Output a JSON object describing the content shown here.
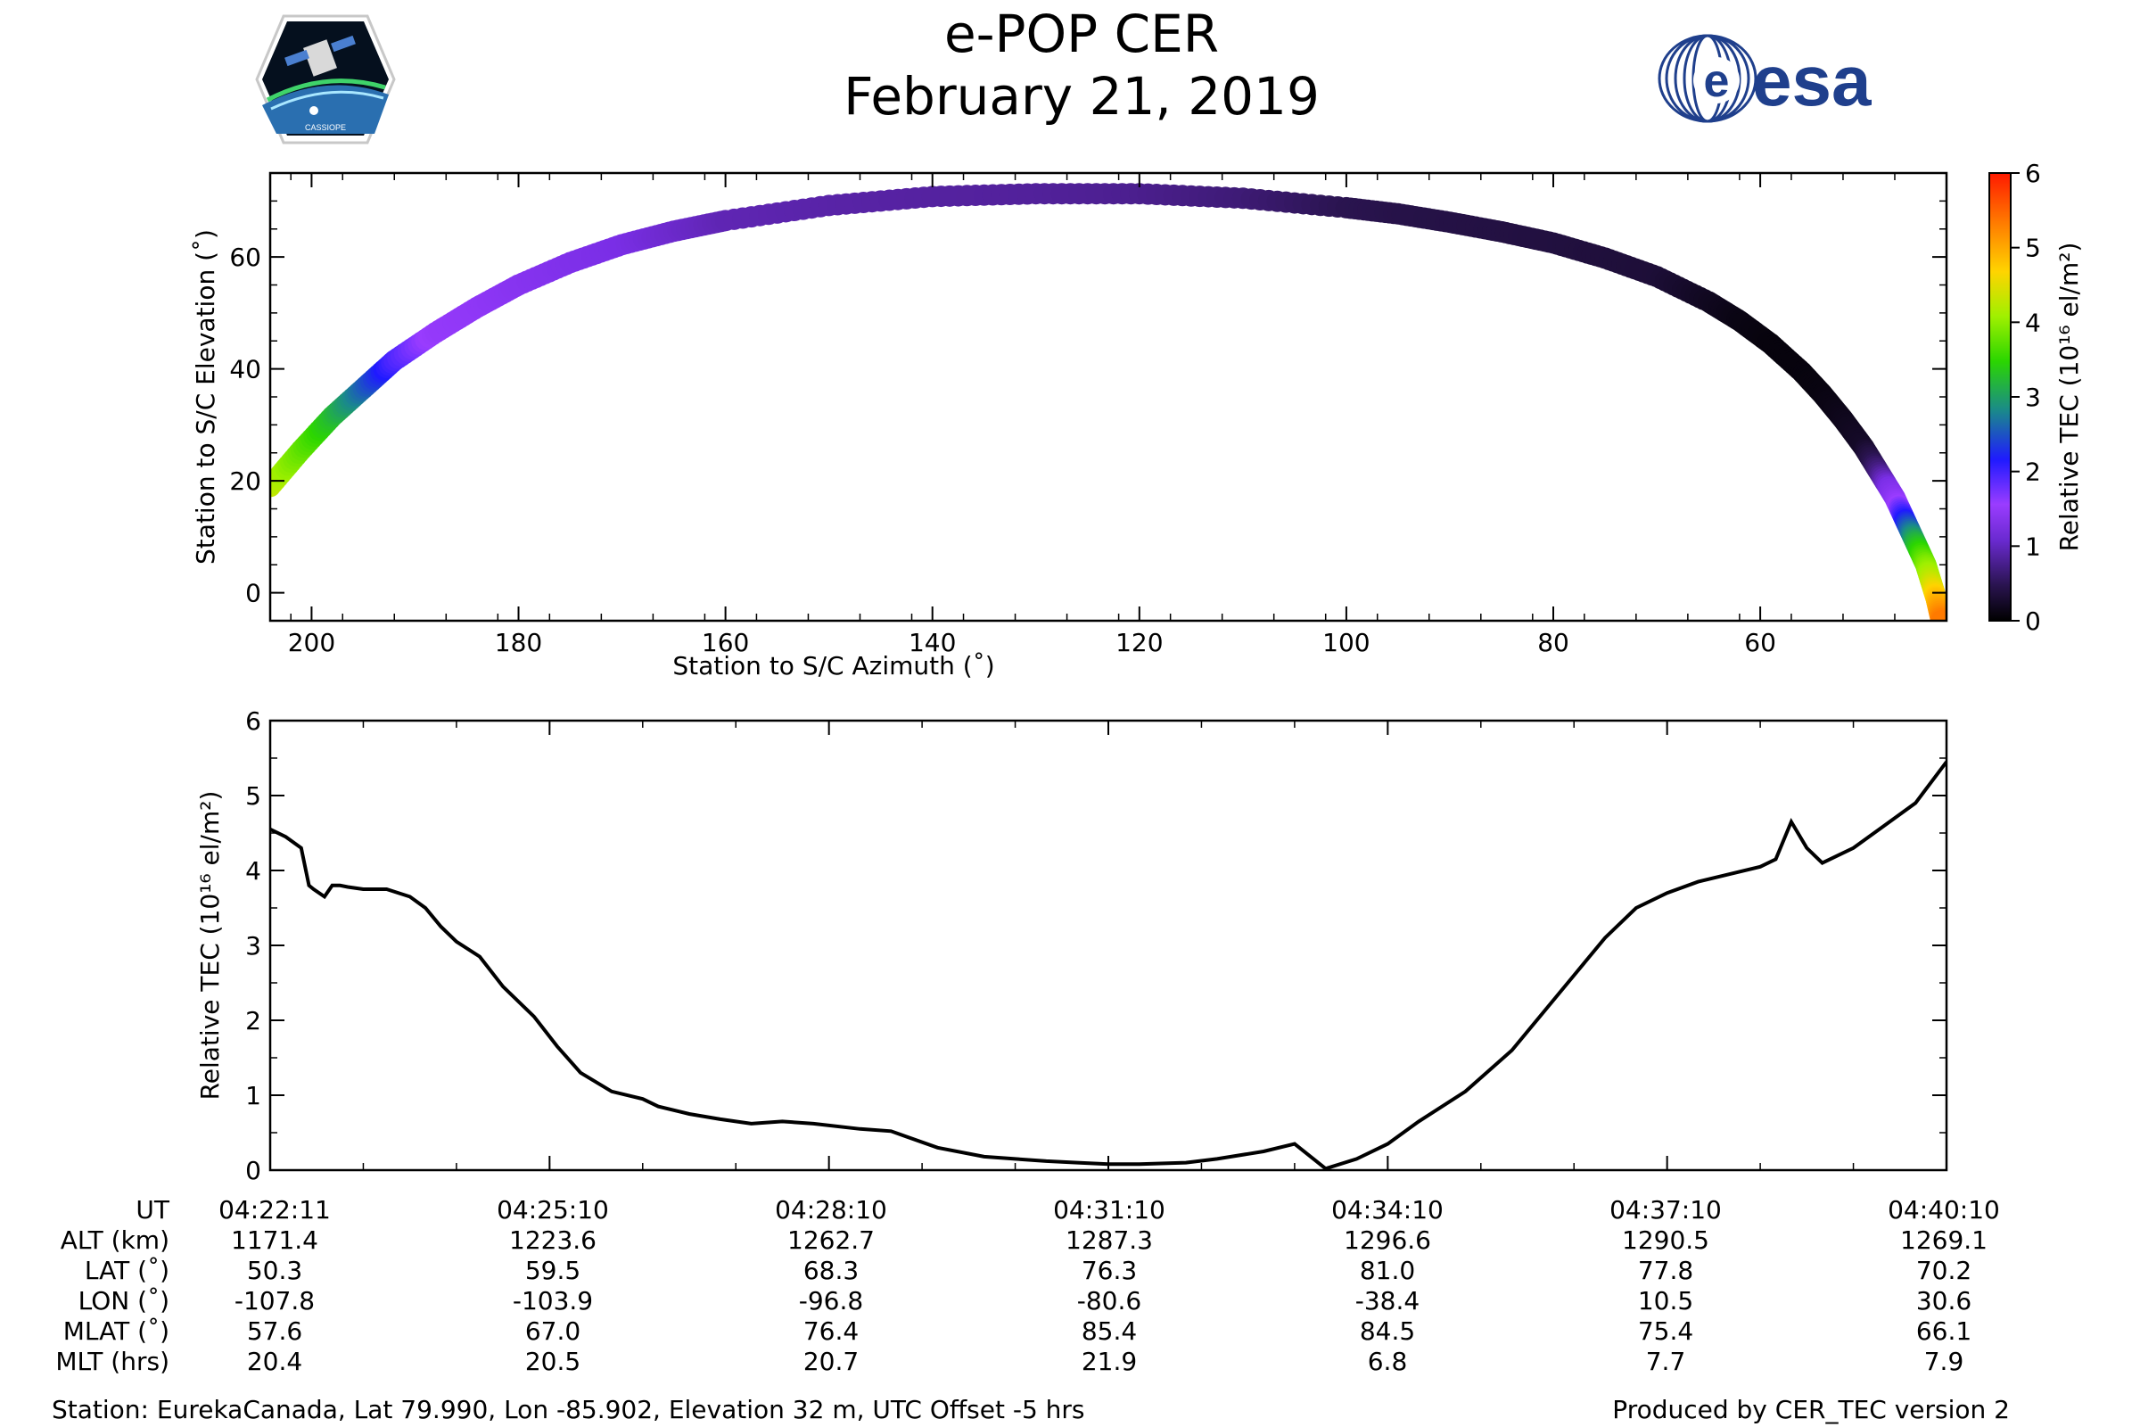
{
  "header": {
    "title": "e-POP CER",
    "subtitle": "February 21, 2019",
    "esa_logo_text": "esa",
    "cassiope_logo_text": "CASSIOPE"
  },
  "colors": {
    "curve": "#000000",
    "colormap": [
      "#000000",
      "#2a1450",
      "#7a2ee6",
      "#9a3cff",
      "#1f1aff",
      "#1a8a8a",
      "#2bd600",
      "#a0f000",
      "#ffd400",
      "#ff7a00",
      "#ff1a00"
    ],
    "esa_blue": "#1f3f8c"
  },
  "chart_data": [
    {
      "type": "scatter",
      "name": "sky-track",
      "xlabel": "Station to S/C Azimuth (˚)",
      "ylabel": "Station to S/C Elevation (˚)",
      "xlim": [
        204,
        42
      ],
      "ylim": [
        -5,
        75
      ],
      "xticks": [
        200,
        180,
        160,
        140,
        120,
        100,
        80,
        60
      ],
      "yticks": [
        0,
        20,
        40,
        60
      ],
      "colorbar": {
        "label": "Relative TEC (10¹⁶ el/m²)",
        "min": 0,
        "max": 6,
        "ticks": [
          0,
          1,
          2,
          3,
          4,
          5,
          6
        ]
      },
      "x": [
        204,
        201,
        198,
        195,
        192,
        188,
        184,
        180,
        175,
        170,
        165,
        160,
        150,
        140,
        130,
        120,
        110,
        100,
        95,
        90,
        85,
        80,
        75,
        70,
        65,
        62,
        59,
        56,
        54,
        52,
        50,
        48.5,
        47,
        46,
        45,
        44,
        43.5,
        43,
        42.5
      ],
      "y": [
        19,
        25.5,
        31.5,
        36.5,
        41.5,
        46.5,
        51,
        55,
        59,
        62.2,
        64.6,
        66.5,
        69.2,
        70.8,
        71.3,
        71.3,
        70.5,
        68.8,
        67.7,
        66.2,
        64.5,
        62.5,
        59.8,
        56.5,
        52,
        48.6,
        44.5,
        39.5,
        35.5,
        31,
        26,
        21.5,
        17,
        13,
        9,
        5,
        2,
        -1,
        -5
      ],
      "tec": [
        4.4,
        3.9,
        3.4,
        2.8,
        2.2,
        1.7,
        1.6,
        1.45,
        1.3,
        1.2,
        1.1,
        1.0,
        0.95,
        0.92,
        0.9,
        0.85,
        0.75,
        0.6,
        0.55,
        0.52,
        0.5,
        0.48,
        0.45,
        0.42,
        0.25,
        0.15,
        0.1,
        0.1,
        0.12,
        0.2,
        0.3,
        0.8,
        1.5,
        2.4,
        3.3,
        4.0,
        4.4,
        4.9,
        5.4
      ]
    },
    {
      "type": "line",
      "name": "tec-time-series",
      "xlabel": "UT",
      "ylabel": "Relative TEC (10¹⁶ el/m²)",
      "xlim": [
        0,
        1080
      ],
      "ylim": [
        0,
        6
      ],
      "yticks": [
        0,
        1,
        2,
        3,
        4,
        5,
        6
      ],
      "x": [
        0,
        10,
        20,
        25,
        28,
        35,
        40,
        45,
        50,
        60,
        75,
        90,
        100,
        110,
        120,
        135,
        150,
        170,
        185,
        200,
        220,
        240,
        250,
        270,
        290,
        310,
        330,
        350,
        380,
        400,
        430,
        460,
        480,
        500,
        520,
        540,
        560,
        590,
        610,
        640,
        660,
        680,
        700,
        720,
        740,
        770,
        800,
        820,
        840,
        860,
        880,
        900,
        920,
        940,
        960,
        970,
        980,
        990,
        1000,
        1010,
        1020,
        1040,
        1060,
        1080
      ],
      "y": [
        4.55,
        4.45,
        4.3,
        3.8,
        3.75,
        3.65,
        3.8,
        3.8,
        3.78,
        3.75,
        3.75,
        3.65,
        3.5,
        3.25,
        3.05,
        2.85,
        2.45,
        2.05,
        1.65,
        1.3,
        1.05,
        0.95,
        0.85,
        0.75,
        0.68,
        0.62,
        0.65,
        0.62,
        0.55,
        0.52,
        0.3,
        0.18,
        0.15,
        0.12,
        0.1,
        0.08,
        0.08,
        0.1,
        0.15,
        0.25,
        0.35,
        0.02,
        0.15,
        0.35,
        0.65,
        1.05,
        1.6,
        2.1,
        2.6,
        3.1,
        3.5,
        3.7,
        3.85,
        3.95,
        4.05,
        4.15,
        4.65,
        4.3,
        4.1,
        4.2,
        4.3,
        4.6,
        4.9,
        5.45
      ],
      "xticks": [
        0,
        180,
        360,
        540,
        720,
        900,
        1080
      ]
    }
  ],
  "ephemeris": {
    "row_labels": [
      "UT",
      "ALT (km)",
      "LAT (˚)",
      "LON (˚)",
      "MLAT (˚)",
      "MLT (hrs)"
    ],
    "columns": [
      [
        "04:22:11",
        "1171.4",
        "50.3",
        "-107.8",
        "57.6",
        "20.4"
      ],
      [
        "04:25:10",
        "1223.6",
        "59.5",
        "-103.9",
        "67.0",
        "20.5"
      ],
      [
        "04:28:10",
        "1262.7",
        "68.3",
        "-96.8",
        "76.4",
        "20.7"
      ],
      [
        "04:31:10",
        "1287.3",
        "76.3",
        "-80.6",
        "85.4",
        "21.9"
      ],
      [
        "04:34:10",
        "1296.6",
        "81.0",
        "-38.4",
        "84.5",
        "6.8"
      ],
      [
        "04:37:10",
        "1290.5",
        "77.8",
        "10.5",
        "75.4",
        "7.7"
      ],
      [
        "04:40:10",
        "1269.1",
        "70.2",
        "30.6",
        "66.1",
        "7.9"
      ]
    ]
  },
  "footer": {
    "station": "Station: EurekaCanada, Lat 79.990, Lon -85.902, Elevation 32 m, UTC Offset -5 hrs",
    "producer": "Produced by CER_TEC version 2"
  }
}
